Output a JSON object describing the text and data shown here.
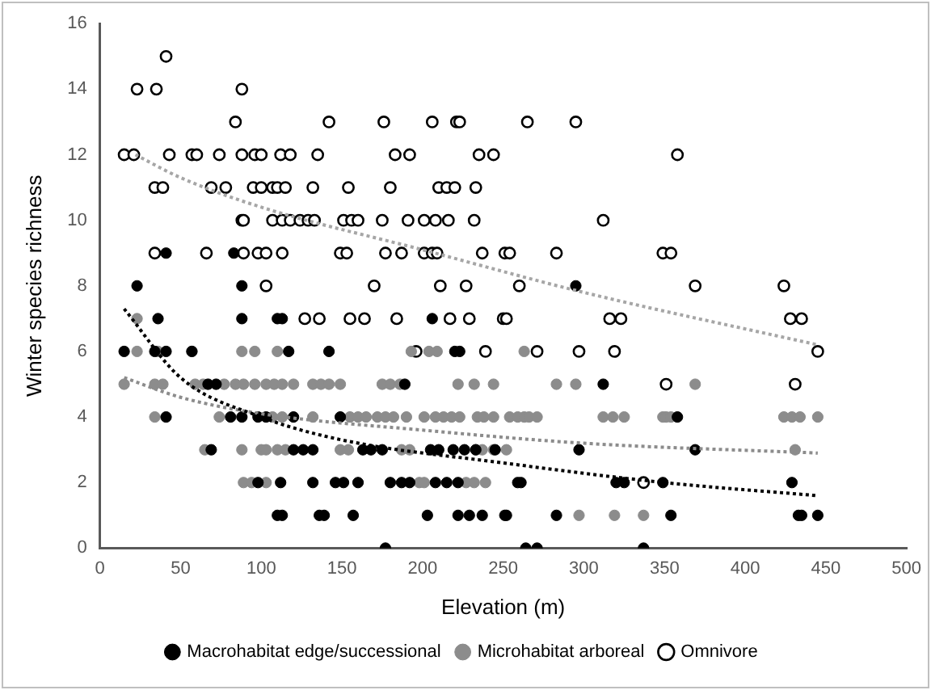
{
  "chart_data": {
    "type": "scatter",
    "xlabel": "Elevation (m)",
    "ylabel": "Winter species richness",
    "xlim": [
      0,
      500
    ],
    "xticks": [
      0,
      50,
      100,
      150,
      200,
      250,
      300,
      350,
      400,
      450,
      500
    ],
    "ylim": [
      0,
      16
    ],
    "yticks": [
      0,
      2,
      4,
      6,
      8,
      10,
      12,
      14,
      16
    ],
    "grid": false,
    "legend": "bottom",
    "marker": "circle",
    "series": [
      {
        "name": "Macrohabitat edge/successional",
        "color": "#000000",
        "x": [
          41,
          83,
          23,
          88,
          295,
          36,
          88,
          110,
          113,
          206,
          15,
          34,
          41,
          57,
          117,
          142,
          220,
          223,
          67,
          72,
          189,
          312,
          41,
          81,
          88,
          98,
          103,
          120,
          149,
          358,
          69,
          120,
          126,
          132,
          163,
          168,
          175,
          205,
          210,
          219,
          226,
          233,
          245,
          297,
          369,
          98,
          112,
          132,
          146,
          151,
          160,
          180,
          187,
          192,
          208,
          215,
          222,
          259,
          261,
          320,
          325,
          349,
          429,
          110,
          113,
          136,
          139,
          157,
          203,
          222,
          229,
          251,
          237,
          252,
          283,
          354,
          433,
          435,
          445,
          177,
          264,
          271,
          337
        ],
        "values": [
          9,
          9,
          8,
          8,
          8,
          7,
          7,
          7,
          7,
          7,
          6,
          6,
          6,
          6,
          6,
          6,
          6,
          6,
          5,
          5,
          5,
          5,
          4,
          4,
          4,
          4,
          4,
          4,
          4,
          4,
          3,
          3,
          3,
          3,
          3,
          3,
          3,
          3,
          3,
          3,
          3,
          3,
          3,
          3,
          3,
          2,
          2,
          2,
          2,
          2,
          2,
          2,
          2,
          2,
          2,
          2,
          2,
          2,
          2,
          2,
          2,
          2,
          2,
          1,
          1,
          1,
          1,
          1,
          1,
          1,
          1,
          1,
          1,
          1,
          1,
          1,
          1,
          1,
          1,
          0,
          0,
          0,
          0
        ]
      },
      {
        "name": "Microhabitat arboreal",
        "color": "#8c8c8c",
        "x": [
          23,
          23,
          36,
          57,
          88,
          96,
          110,
          193,
          204,
          209,
          263,
          15,
          34,
          39,
          59,
          64,
          77,
          84,
          89,
          96,
          103,
          108,
          113,
          120,
          132,
          137,
          142,
          149,
          175,
          180,
          186,
          222,
          232,
          244,
          283,
          295,
          369,
          34,
          74,
          107,
          113,
          132,
          155,
          160,
          165,
          172,
          177,
          182,
          190,
          201,
          208,
          213,
          218,
          223,
          234,
          244,
          238,
          254,
          259,
          263,
          266,
          271,
          312,
          318,
          325,
          349,
          351,
          354,
          424,
          429,
          434,
          445,
          65,
          88,
          100,
          103,
          110,
          115,
          149,
          154,
          187,
          192,
          237,
          244,
          233,
          252,
          431,
          89,
          94,
          103,
          198,
          201,
          227,
          232,
          239,
          297,
          319,
          337
        ],
        "values": [
          7,
          6,
          6,
          6,
          6,
          6,
          6,
          6,
          6,
          6,
          6,
          5,
          5,
          5,
          5,
          5,
          5,
          5,
          5,
          5,
          5,
          5,
          5,
          5,
          5,
          5,
          5,
          5,
          5,
          5,
          5,
          5,
          5,
          5,
          5,
          5,
          5,
          4,
          4,
          4,
          4,
          4,
          4,
          4,
          4,
          4,
          4,
          4,
          4,
          4,
          4,
          4,
          4,
          4,
          4,
          4,
          4,
          4,
          4,
          4,
          4,
          4,
          4,
          4,
          4,
          4,
          4,
          4,
          4,
          4,
          4,
          4,
          3,
          3,
          3,
          3,
          3,
          3,
          3,
          3,
          3,
          3,
          3,
          3,
          3,
          3,
          3,
          2,
          2,
          2,
          2,
          2,
          2,
          2,
          2,
          1,
          1,
          1
        ]
      },
      {
        "name": "Omnivore",
        "color": "#ffffff",
        "x": [
          41,
          23,
          35,
          88,
          84,
          142,
          176,
          206,
          221,
          223,
          265,
          295,
          15,
          21,
          43,
          57,
          60,
          74,
          88,
          96,
          100,
          112,
          118,
          135,
          183,
          192,
          235,
          244,
          358,
          34,
          39,
          69,
          78,
          95,
          100,
          107,
          110,
          115,
          132,
          154,
          180,
          210,
          215,
          220,
          233,
          88,
          89,
          107,
          113,
          118,
          124,
          129,
          133,
          151,
          156,
          160,
          175,
          191,
          201,
          208,
          216,
          232,
          312,
          34,
          66,
          89,
          98,
          103,
          113,
          149,
          153,
          177,
          187,
          201,
          206,
          209,
          237,
          251,
          254,
          283,
          349,
          354,
          103,
          170,
          211,
          227,
          260,
          369,
          424,
          127,
          136,
          155,
          164,
          184,
          217,
          229,
          250,
          252,
          316,
          323,
          428,
          435,
          196,
          239,
          271,
          297,
          319,
          445,
          351,
          431,
          337
        ],
        "values": [
          15,
          14,
          14,
          14,
          13,
          13,
          13,
          13,
          13,
          13,
          13,
          13,
          12,
          12,
          12,
          12,
          12,
          12,
          12,
          12,
          12,
          12,
          12,
          12,
          12,
          12,
          12,
          12,
          12,
          11,
          11,
          11,
          11,
          11,
          11,
          11,
          11,
          11,
          11,
          11,
          11,
          11,
          11,
          11,
          11,
          10,
          10,
          10,
          10,
          10,
          10,
          10,
          10,
          10,
          10,
          10,
          10,
          10,
          10,
          10,
          10,
          10,
          10,
          9,
          9,
          9,
          9,
          9,
          9,
          9,
          9,
          9,
          9,
          9,
          9,
          9,
          9,
          9,
          9,
          9,
          9,
          9,
          8,
          8,
          8,
          8,
          8,
          8,
          8,
          7,
          7,
          7,
          7,
          7,
          7,
          7,
          7,
          7,
          7,
          7,
          7,
          7,
          6,
          6,
          6,
          6,
          6,
          6,
          5,
          5,
          2
        ]
      },
      {
        "type": "line",
        "color": "#000000",
        "marker": "none",
        "line_style": "dotted",
        "x": [
          15,
          50,
          100,
          150,
          250,
          350,
          445
        ],
        "values": [
          7.3,
          5.2,
          4.0,
          3.3,
          2.6,
          2.0,
          1.6
        ]
      },
      {
        "type": "line",
        "color": "#8c8c8c",
        "marker": "none",
        "line_style": "dotted",
        "x": [
          15,
          50,
          100,
          200,
          300,
          445
        ],
        "values": [
          5.2,
          4.6,
          4.1,
          3.6,
          3.2,
          2.9
        ]
      },
      {
        "type": "line",
        "color": "#a6a6a6",
        "marker": "none",
        "line_style": "dotted",
        "x": [
          22,
          50,
          100,
          200,
          300,
          445
        ],
        "values": [
          12,
          11.3,
          10.4,
          9.1,
          7.8,
          6.2
        ]
      }
    ]
  }
}
